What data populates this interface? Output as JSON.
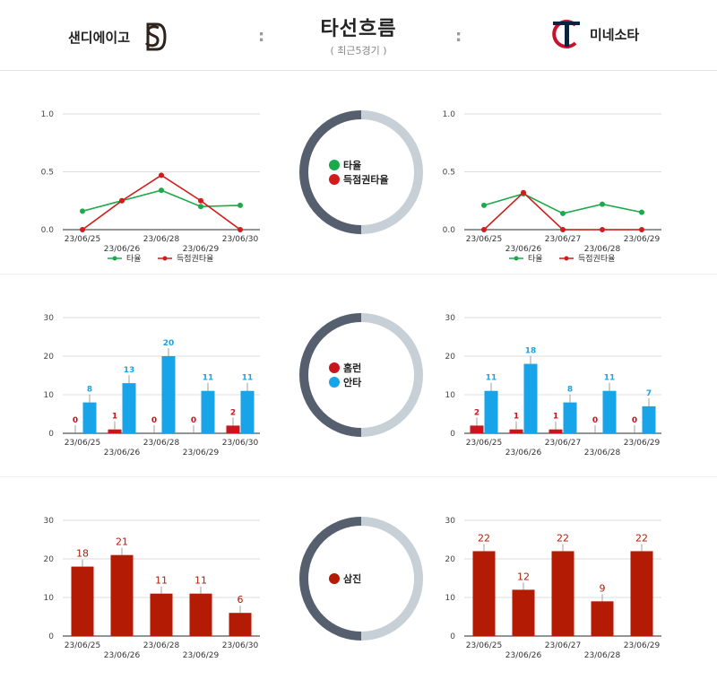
{
  "header": {
    "title": "타선흐름",
    "subtitle": "( 최근5경기 )",
    "separator": ":",
    "left_team": {
      "name": "샌디에이고",
      "logo": "padres-sd-logo",
      "color": "#2f241d"
    },
    "right_team": {
      "name": "미네소타",
      "logo": "twins-tc-logo",
      "color": "#c8102e"
    }
  },
  "colors": {
    "avg": "#1aaa4a",
    "risp": "#d11c1c",
    "hr": "#c8161d",
    "hits": "#18a4e8",
    "so": "#b31b05",
    "donut_dark": "#555f6e",
    "donut_light": "#c7d0d6"
  },
  "legends": {
    "avg_row": [
      "타율",
      "득점권타율"
    ],
    "hits_row": [
      "홈런",
      "안타"
    ],
    "so_row": [
      "삼진"
    ]
  },
  "chart_data": [
    {
      "id": "sd-avg",
      "type": "line",
      "x": [
        "23/06/25",
        "23/06/26",
        "23/06/28",
        "23/06/29",
        "23/06/30"
      ],
      "series": [
        {
          "name": "타율",
          "values": [
            0.16,
            0.25,
            0.34,
            0.2,
            0.21
          ]
        },
        {
          "name": "득점권타율",
          "values": [
            0.0,
            0.25,
            0.47,
            0.25,
            0.0
          ]
        }
      ],
      "ylim": [
        0,
        1.0
      ],
      "yticks": [
        "0.0",
        "0.5",
        "1.0"
      ],
      "legend": "bottom",
      "grid": true
    },
    {
      "id": "min-avg",
      "type": "line",
      "x": [
        "23/06/25",
        "23/06/26",
        "23/06/27",
        "23/06/28",
        "23/06/29"
      ],
      "series": [
        {
          "name": "타율",
          "values": [
            0.21,
            0.31,
            0.14,
            0.22,
            0.15
          ]
        },
        {
          "name": "득점권타율",
          "values": [
            0.0,
            0.32,
            0.0,
            0.0,
            0.0
          ]
        }
      ],
      "ylim": [
        0,
        1.0
      ],
      "yticks": [
        "0.0",
        "0.5",
        "1.0"
      ],
      "legend": "bottom",
      "grid": true
    },
    {
      "id": "sd-hits",
      "type": "bar",
      "categories": [
        "23/06/25",
        "23/06/26",
        "23/06/28",
        "23/06/29",
        "23/06/30"
      ],
      "series": [
        {
          "name": "홈런",
          "values": [
            0,
            1,
            0,
            0,
            2
          ]
        },
        {
          "name": "안타",
          "values": [
            8,
            13,
            20,
            11,
            11
          ]
        }
      ],
      "ylim": [
        0,
        30
      ],
      "yticks": [
        "0",
        "10",
        "20",
        "30"
      ],
      "grid": true
    },
    {
      "id": "min-hits",
      "type": "bar",
      "categories": [
        "23/06/25",
        "23/06/26",
        "23/06/27",
        "23/06/28",
        "23/06/29"
      ],
      "series": [
        {
          "name": "홈런",
          "values": [
            2,
            1,
            1,
            0,
            0
          ]
        },
        {
          "name": "안타",
          "values": [
            11,
            18,
            8,
            11,
            7
          ]
        }
      ],
      "ylim": [
        0,
        30
      ],
      "yticks": [
        "0",
        "10",
        "20",
        "30"
      ],
      "grid": true
    },
    {
      "id": "sd-so",
      "type": "bar",
      "categories": [
        "23/06/25",
        "23/06/26",
        "23/06/28",
        "23/06/29",
        "23/06/30"
      ],
      "series": [
        {
          "name": "삼진",
          "values": [
            18,
            21,
            11,
            11,
            6
          ]
        }
      ],
      "ylim": [
        0,
        30
      ],
      "yticks": [
        "0",
        "10",
        "20",
        "30"
      ],
      "grid": true
    },
    {
      "id": "min-so",
      "type": "bar",
      "categories": [
        "23/06/25",
        "23/06/26",
        "23/06/27",
        "23/06/28",
        "23/06/29"
      ],
      "series": [
        {
          "name": "삼진",
          "values": [
            22,
            12,
            22,
            9,
            22
          ]
        }
      ],
      "ylim": [
        0,
        30
      ],
      "yticks": [
        "0",
        "10",
        "20",
        "30"
      ],
      "grid": true
    }
  ]
}
